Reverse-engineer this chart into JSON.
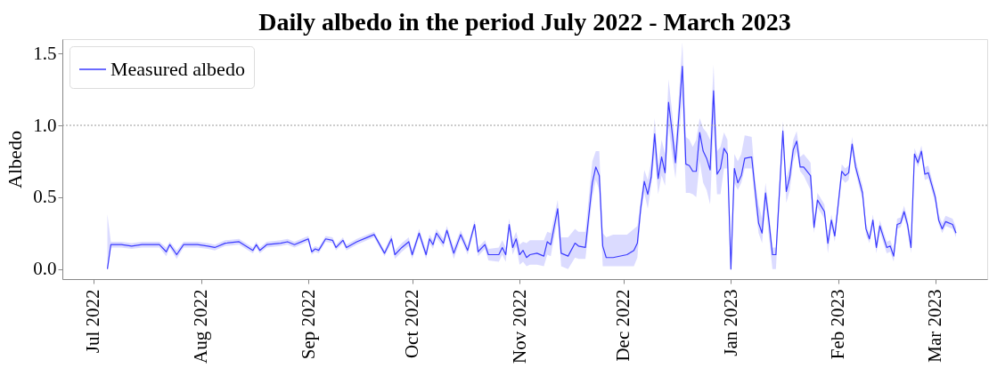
{
  "chart_data": {
    "type": "line",
    "title": "Daily albedo in the period July 2022 - March 2023",
    "ylabel": "Albedo",
    "x": [
      "2022-07-05",
      "2022-07-06",
      "2022-07-09",
      "2022-07-12",
      "2022-07-15",
      "2022-07-18",
      "2022-07-20",
      "2022-07-22",
      "2022-07-23",
      "2022-07-25",
      "2022-07-27",
      "2022-07-31",
      "2022-08-03",
      "2022-08-05",
      "2022-08-08",
      "2022-08-12",
      "2022-08-16",
      "2022-08-17",
      "2022-08-18",
      "2022-08-20",
      "2022-08-24",
      "2022-08-26",
      "2022-08-28",
      "2022-08-31",
      "2022-09-01",
      "2022-09-02",
      "2022-09-03",
      "2022-09-04",
      "2022-09-06",
      "2022-09-08",
      "2022-09-09",
      "2022-09-11",
      "2022-09-12",
      "2022-09-15",
      "2022-09-18",
      "2022-09-20",
      "2022-09-23",
      "2022-09-25",
      "2022-09-26",
      "2022-09-28",
      "2022-09-30",
      "2022-10-01",
      "2022-10-03",
      "2022-10-05",
      "2022-10-06",
      "2022-10-07",
      "2022-10-08",
      "2022-10-10",
      "2022-10-11",
      "2022-10-13",
      "2022-10-15",
      "2022-10-17",
      "2022-10-19",
      "2022-10-20",
      "2022-10-22",
      "2022-10-23",
      "2022-10-26",
      "2022-10-27",
      "2022-10-28",
      "2022-10-29",
      "2022-10-30",
      "2022-10-31",
      "2022-11-01",
      "2022-11-02",
      "2022-11-03",
      "2022-11-04",
      "2022-11-06",
      "2022-11-08",
      "2022-11-09",
      "2022-11-10",
      "2022-11-12",
      "2022-11-13",
      "2022-11-15",
      "2022-11-17",
      "2022-11-18",
      "2022-11-20",
      "2022-11-22",
      "2022-11-23",
      "2022-11-24",
      "2022-11-25",
      "2022-11-26",
      "2022-11-28",
      "2022-12-02",
      "2022-12-04",
      "2022-12-05",
      "2022-12-06",
      "2022-12-07",
      "2022-12-08",
      "2022-12-09",
      "2022-12-10",
      "2022-12-11",
      "2022-12-12",
      "2022-12-13",
      "2022-12-14",
      "2022-12-15",
      "2022-12-16",
      "2022-12-18",
      "2022-12-19",
      "2022-12-20",
      "2022-12-21",
      "2022-12-22",
      "2022-12-23",
      "2022-12-24",
      "2022-12-25",
      "2022-12-26",
      "2022-12-27",
      "2022-12-28",
      "2022-12-29",
      "2022-12-30",
      "2022-12-31",
      "2023-01-01",
      "2023-01-02",
      "2023-01-03",
      "2023-01-04",
      "2023-01-05",
      "2023-01-07",
      "2023-01-08",
      "2023-01-09",
      "2023-01-10",
      "2023-01-11",
      "2023-01-12",
      "2023-01-13",
      "2023-01-14",
      "2023-01-16",
      "2023-01-17",
      "2023-01-18",
      "2023-01-19",
      "2023-01-20",
      "2023-01-21",
      "2023-01-22",
      "2023-01-24",
      "2023-01-25",
      "2023-01-26",
      "2023-01-28",
      "2023-01-29",
      "2023-01-30",
      "2023-01-31",
      "2023-02-02",
      "2023-02-03",
      "2023-02-04",
      "2023-02-05",
      "2023-02-06",
      "2023-02-08",
      "2023-02-09",
      "2023-02-10",
      "2023-02-11",
      "2023-02-12",
      "2023-02-13",
      "2023-02-15",
      "2023-02-16",
      "2023-02-17",
      "2023-02-18",
      "2023-02-19",
      "2023-02-20",
      "2023-02-21",
      "2023-02-22",
      "2023-02-23",
      "2023-02-24",
      "2023-02-25",
      "2023-02-26",
      "2023-02-27",
      "2023-03-01",
      "2023-03-02",
      "2023-03-03",
      "2023-03-04",
      "2023-03-06",
      "2023-03-07"
    ],
    "series": [
      {
        "name": "Measured albedo",
        "color": "#3a3aff",
        "values": [
          0.0,
          0.17,
          0.17,
          0.16,
          0.17,
          0.17,
          0.17,
          0.12,
          0.17,
          0.1,
          0.17,
          0.17,
          0.16,
          0.15,
          0.18,
          0.19,
          0.13,
          0.17,
          0.13,
          0.17,
          0.18,
          0.19,
          0.17,
          0.2,
          0.21,
          0.12,
          0.14,
          0.13,
          0.21,
          0.2,
          0.15,
          0.2,
          0.15,
          0.19,
          0.22,
          0.24,
          0.11,
          0.21,
          0.1,
          0.15,
          0.19,
          0.1,
          0.25,
          0.1,
          0.21,
          0.17,
          0.25,
          0.18,
          0.27,
          0.11,
          0.24,
          0.13,
          0.31,
          0.12,
          0.17,
          0.1,
          0.1,
          0.15,
          0.1,
          0.31,
          0.15,
          0.21,
          0.1,
          0.13,
          0.08,
          0.1,
          0.11,
          0.09,
          0.19,
          0.17,
          0.42,
          0.11,
          0.09,
          0.18,
          0.16,
          0.15,
          0.6,
          0.71,
          0.65,
          0.16,
          0.08,
          0.08,
          0.1,
          0.13,
          0.18,
          0.43,
          0.61,
          0.52,
          0.64,
          0.94,
          0.63,
          0.78,
          0.67,
          1.16,
          0.96,
          0.74,
          1.41,
          0.73,
          0.72,
          0.68,
          0.68,
          0.95,
          0.82,
          0.77,
          0.69,
          1.24,
          0.66,
          0.7,
          0.84,
          0.8,
          0.0,
          0.7,
          0.6,
          0.65,
          0.77,
          0.78,
          0.55,
          0.32,
          0.25,
          0.53,
          0.33,
          0.1,
          0.1,
          0.96,
          0.54,
          0.64,
          0.83,
          0.89,
          0.71,
          0.71,
          0.65,
          0.29,
          0.48,
          0.4,
          0.18,
          0.34,
          0.23,
          0.68,
          0.65,
          0.67,
          0.87,
          0.71,
          0.53,
          0.28,
          0.21,
          0.34,
          0.15,
          0.3,
          0.15,
          0.16,
          0.09,
          0.31,
          0.32,
          0.4,
          0.31,
          0.15,
          0.8,
          0.74,
          0.82,
          0.66,
          0.67,
          0.5,
          0.34,
          0.28,
          0.33,
          0.31,
          0.25
        ],
        "lower": [
          0.0,
          0.15,
          0.15,
          0.14,
          0.15,
          0.15,
          0.15,
          0.09,
          0.15,
          0.07,
          0.15,
          0.15,
          0.14,
          0.13,
          0.16,
          0.17,
          0.11,
          0.15,
          0.11,
          0.15,
          0.16,
          0.17,
          0.15,
          0.18,
          0.19,
          0.1,
          0.12,
          0.11,
          0.19,
          0.18,
          0.13,
          0.18,
          0.13,
          0.17,
          0.2,
          0.22,
          0.09,
          0.18,
          0.07,
          0.12,
          0.16,
          0.07,
          0.22,
          0.07,
          0.18,
          0.14,
          0.22,
          0.15,
          0.24,
          0.07,
          0.21,
          0.1,
          0.28,
          0.09,
          0.14,
          0.06,
          0.05,
          0.1,
          0.05,
          0.27,
          0.1,
          0.16,
          0.03,
          0.05,
          0.02,
          0.03,
          0.03,
          0.02,
          0.1,
          0.09,
          0.36,
          0.02,
          0.0,
          0.08,
          0.07,
          0.07,
          0.5,
          0.62,
          0.55,
          0.02,
          0.02,
          0.02,
          0.02,
          0.02,
          0.08,
          0.38,
          0.53,
          0.42,
          0.58,
          0.8,
          0.52,
          0.65,
          0.58,
          1.0,
          0.8,
          0.63,
          1.2,
          0.53,
          0.53,
          0.52,
          0.5,
          0.75,
          0.6,
          0.55,
          0.45,
          1.0,
          0.52,
          0.52,
          0.7,
          0.7,
          0.0,
          0.6,
          0.55,
          0.6,
          0.7,
          0.7,
          0.45,
          0.25,
          0.18,
          0.45,
          0.22,
          0.0,
          0.0,
          0.88,
          0.46,
          0.55,
          0.75,
          0.82,
          0.68,
          0.65,
          0.55,
          0.25,
          0.43,
          0.35,
          0.11,
          0.29,
          0.19,
          0.63,
          0.6,
          0.62,
          0.82,
          0.67,
          0.48,
          0.24,
          0.18,
          0.3,
          0.11,
          0.26,
          0.11,
          0.12,
          0.05,
          0.28,
          0.29,
          0.36,
          0.27,
          0.11,
          0.77,
          0.71,
          0.78,
          0.62,
          0.63,
          0.46,
          0.31,
          0.25,
          0.3,
          0.28,
          0.22
        ],
        "upper": [
          0.38,
          0.19,
          0.19,
          0.18,
          0.19,
          0.19,
          0.19,
          0.15,
          0.19,
          0.13,
          0.19,
          0.19,
          0.18,
          0.17,
          0.2,
          0.21,
          0.15,
          0.19,
          0.15,
          0.19,
          0.2,
          0.21,
          0.19,
          0.22,
          0.23,
          0.14,
          0.16,
          0.15,
          0.23,
          0.22,
          0.17,
          0.22,
          0.17,
          0.21,
          0.24,
          0.26,
          0.13,
          0.24,
          0.13,
          0.18,
          0.22,
          0.13,
          0.28,
          0.13,
          0.24,
          0.2,
          0.28,
          0.21,
          0.3,
          0.15,
          0.27,
          0.16,
          0.34,
          0.15,
          0.2,
          0.14,
          0.15,
          0.2,
          0.15,
          0.35,
          0.2,
          0.26,
          0.17,
          0.19,
          0.18,
          0.2,
          0.2,
          0.2,
          0.26,
          0.25,
          0.48,
          0.22,
          0.22,
          0.28,
          0.26,
          0.26,
          0.75,
          0.82,
          0.82,
          0.25,
          0.22,
          0.24,
          0.24,
          0.28,
          0.3,
          0.48,
          0.69,
          0.62,
          0.75,
          1.05,
          0.72,
          0.9,
          0.8,
          1.32,
          1.1,
          0.85,
          1.58,
          0.92,
          0.9,
          0.85,
          0.9,
          1.05,
          0.98,
          0.95,
          0.9,
          1.42,
          0.82,
          0.85,
          0.95,
          0.9,
          0.0,
          0.8,
          0.75,
          0.8,
          0.93,
          0.92,
          0.62,
          0.45,
          0.35,
          0.6,
          0.4,
          0.15,
          0.15,
          1.03,
          0.63,
          0.72,
          0.9,
          0.96,
          0.78,
          0.8,
          0.74,
          0.34,
          0.53,
          0.45,
          0.21,
          0.38,
          0.27,
          0.73,
          0.7,
          0.72,
          0.92,
          0.76,
          0.58,
          0.32,
          0.24,
          0.38,
          0.19,
          0.34,
          0.19,
          0.2,
          0.13,
          0.35,
          0.36,
          0.44,
          0.35,
          0.19,
          0.84,
          0.78,
          0.86,
          0.71,
          0.72,
          0.54,
          0.38,
          0.32,
          0.37,
          0.35,
          0.29
        ]
      }
    ],
    "xlim": [
      "2022-06-22",
      "2023-03-16"
    ],
    "xticks": [
      {
        "value": "2022-07-01",
        "label": "Jul 2022"
      },
      {
        "value": "2022-08-01",
        "label": "Aug 2022"
      },
      {
        "value": "2022-09-01",
        "label": "Sep 2022"
      },
      {
        "value": "2022-10-01",
        "label": "Oct 2022"
      },
      {
        "value": "2022-11-01",
        "label": "Nov 2022"
      },
      {
        "value": "2022-12-01",
        "label": "Dec 2022"
      },
      {
        "value": "2023-01-01",
        "label": "Jan 2023"
      },
      {
        "value": "2023-02-01",
        "label": "Feb 2023"
      },
      {
        "value": "2023-03-01",
        "label": "Mar 2023"
      }
    ],
    "ylim": [
      -0.07,
      1.6
    ],
    "yticks": [
      {
        "value": 0,
        "label": "0.0"
      },
      {
        "value": 0.5,
        "label": "0.5"
      },
      {
        "value": 1,
        "label": "1.0"
      },
      {
        "value": 1.5,
        "label": "1.5"
      }
    ],
    "ref_lines": [
      {
        "axis": "y",
        "value": 1.0,
        "color": "#999999",
        "line_style": "dotted"
      }
    ],
    "grid": false,
    "legend": "top left",
    "marker": "none",
    "line_style": "solid"
  }
}
